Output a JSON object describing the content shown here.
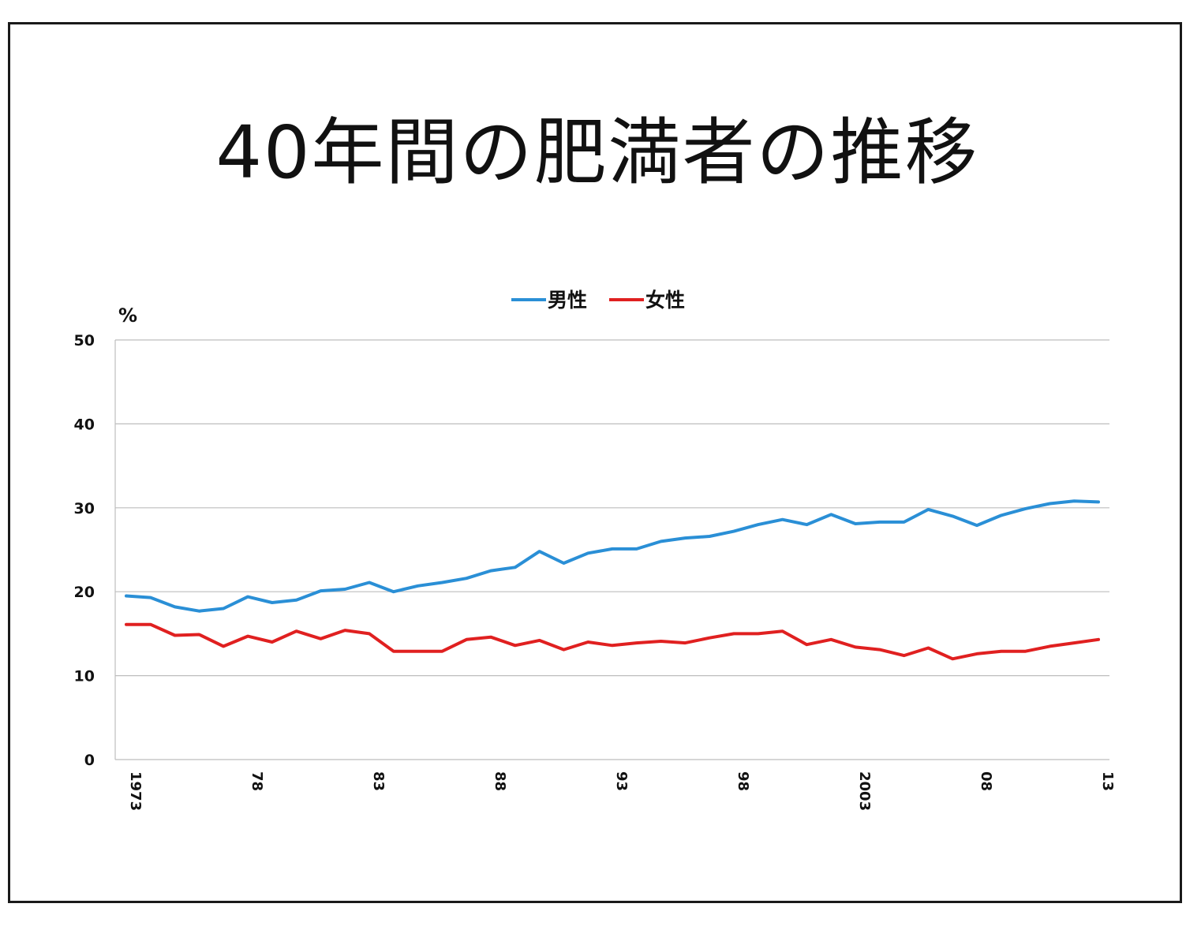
{
  "title": "40年間の肥満者の推移",
  "chart_data": {
    "type": "line",
    "ylabel": "%",
    "ylim": [
      0,
      50
    ],
    "yticks": [
      0,
      10,
      20,
      30,
      40,
      50
    ],
    "legend_position": "top-center",
    "grid": true,
    "x": [
      1973,
      1974,
      1975,
      1976,
      1977,
      1978,
      1979,
      1980,
      1981,
      1982,
      1983,
      1984,
      1985,
      1986,
      1987,
      1988,
      1989,
      1990,
      1991,
      1992,
      1993,
      1994,
      1995,
      1996,
      1997,
      1998,
      1999,
      2000,
      2001,
      2002,
      2003,
      2004,
      2005,
      2006,
      2007,
      2008,
      2009,
      2010,
      2011,
      2012,
      2013
    ],
    "xtick_labels": [
      {
        "x": 1973,
        "label": "1973"
      },
      {
        "x": 1978,
        "label": "78"
      },
      {
        "x": 1983,
        "label": "83"
      },
      {
        "x": 1988,
        "label": "88"
      },
      {
        "x": 1993,
        "label": "93"
      },
      {
        "x": 1998,
        "label": "98"
      },
      {
        "x": 2003,
        "label": "2003"
      },
      {
        "x": 2008,
        "label": "08"
      },
      {
        "x": 2013,
        "label": "13"
      }
    ],
    "series": [
      {
        "name": "男性",
        "color": "#2a8fd6",
        "values": [
          19.5,
          19.3,
          18.2,
          17.7,
          18.0,
          19.4,
          18.7,
          19.0,
          20.1,
          20.3,
          21.1,
          20.0,
          20.7,
          21.1,
          21.6,
          22.5,
          22.9,
          24.8,
          23.4,
          24.6,
          25.1,
          25.1,
          26.0,
          26.4,
          26.6,
          27.2,
          28.0,
          28.6,
          28.0,
          29.2,
          28.1,
          28.3,
          28.3,
          29.8,
          29.0,
          27.9,
          29.1,
          29.9,
          30.5,
          30.8,
          30.7
        ]
      },
      {
        "name": "女性",
        "color": "#e02020",
        "values": [
          16.1,
          16.1,
          14.8,
          14.9,
          13.5,
          14.7,
          14.0,
          15.3,
          14.4,
          15.4,
          15.0,
          12.9,
          12.9,
          12.9,
          14.3,
          14.6,
          13.6,
          14.2,
          13.1,
          14.0,
          13.6,
          13.9,
          14.1,
          13.9,
          14.5,
          15.0,
          15.0,
          15.3,
          13.7,
          14.3,
          13.4,
          13.1,
          12.4,
          13.3,
          12.0,
          12.6,
          12.9,
          12.9,
          13.5,
          13.9,
          14.3
        ]
      }
    ]
  }
}
